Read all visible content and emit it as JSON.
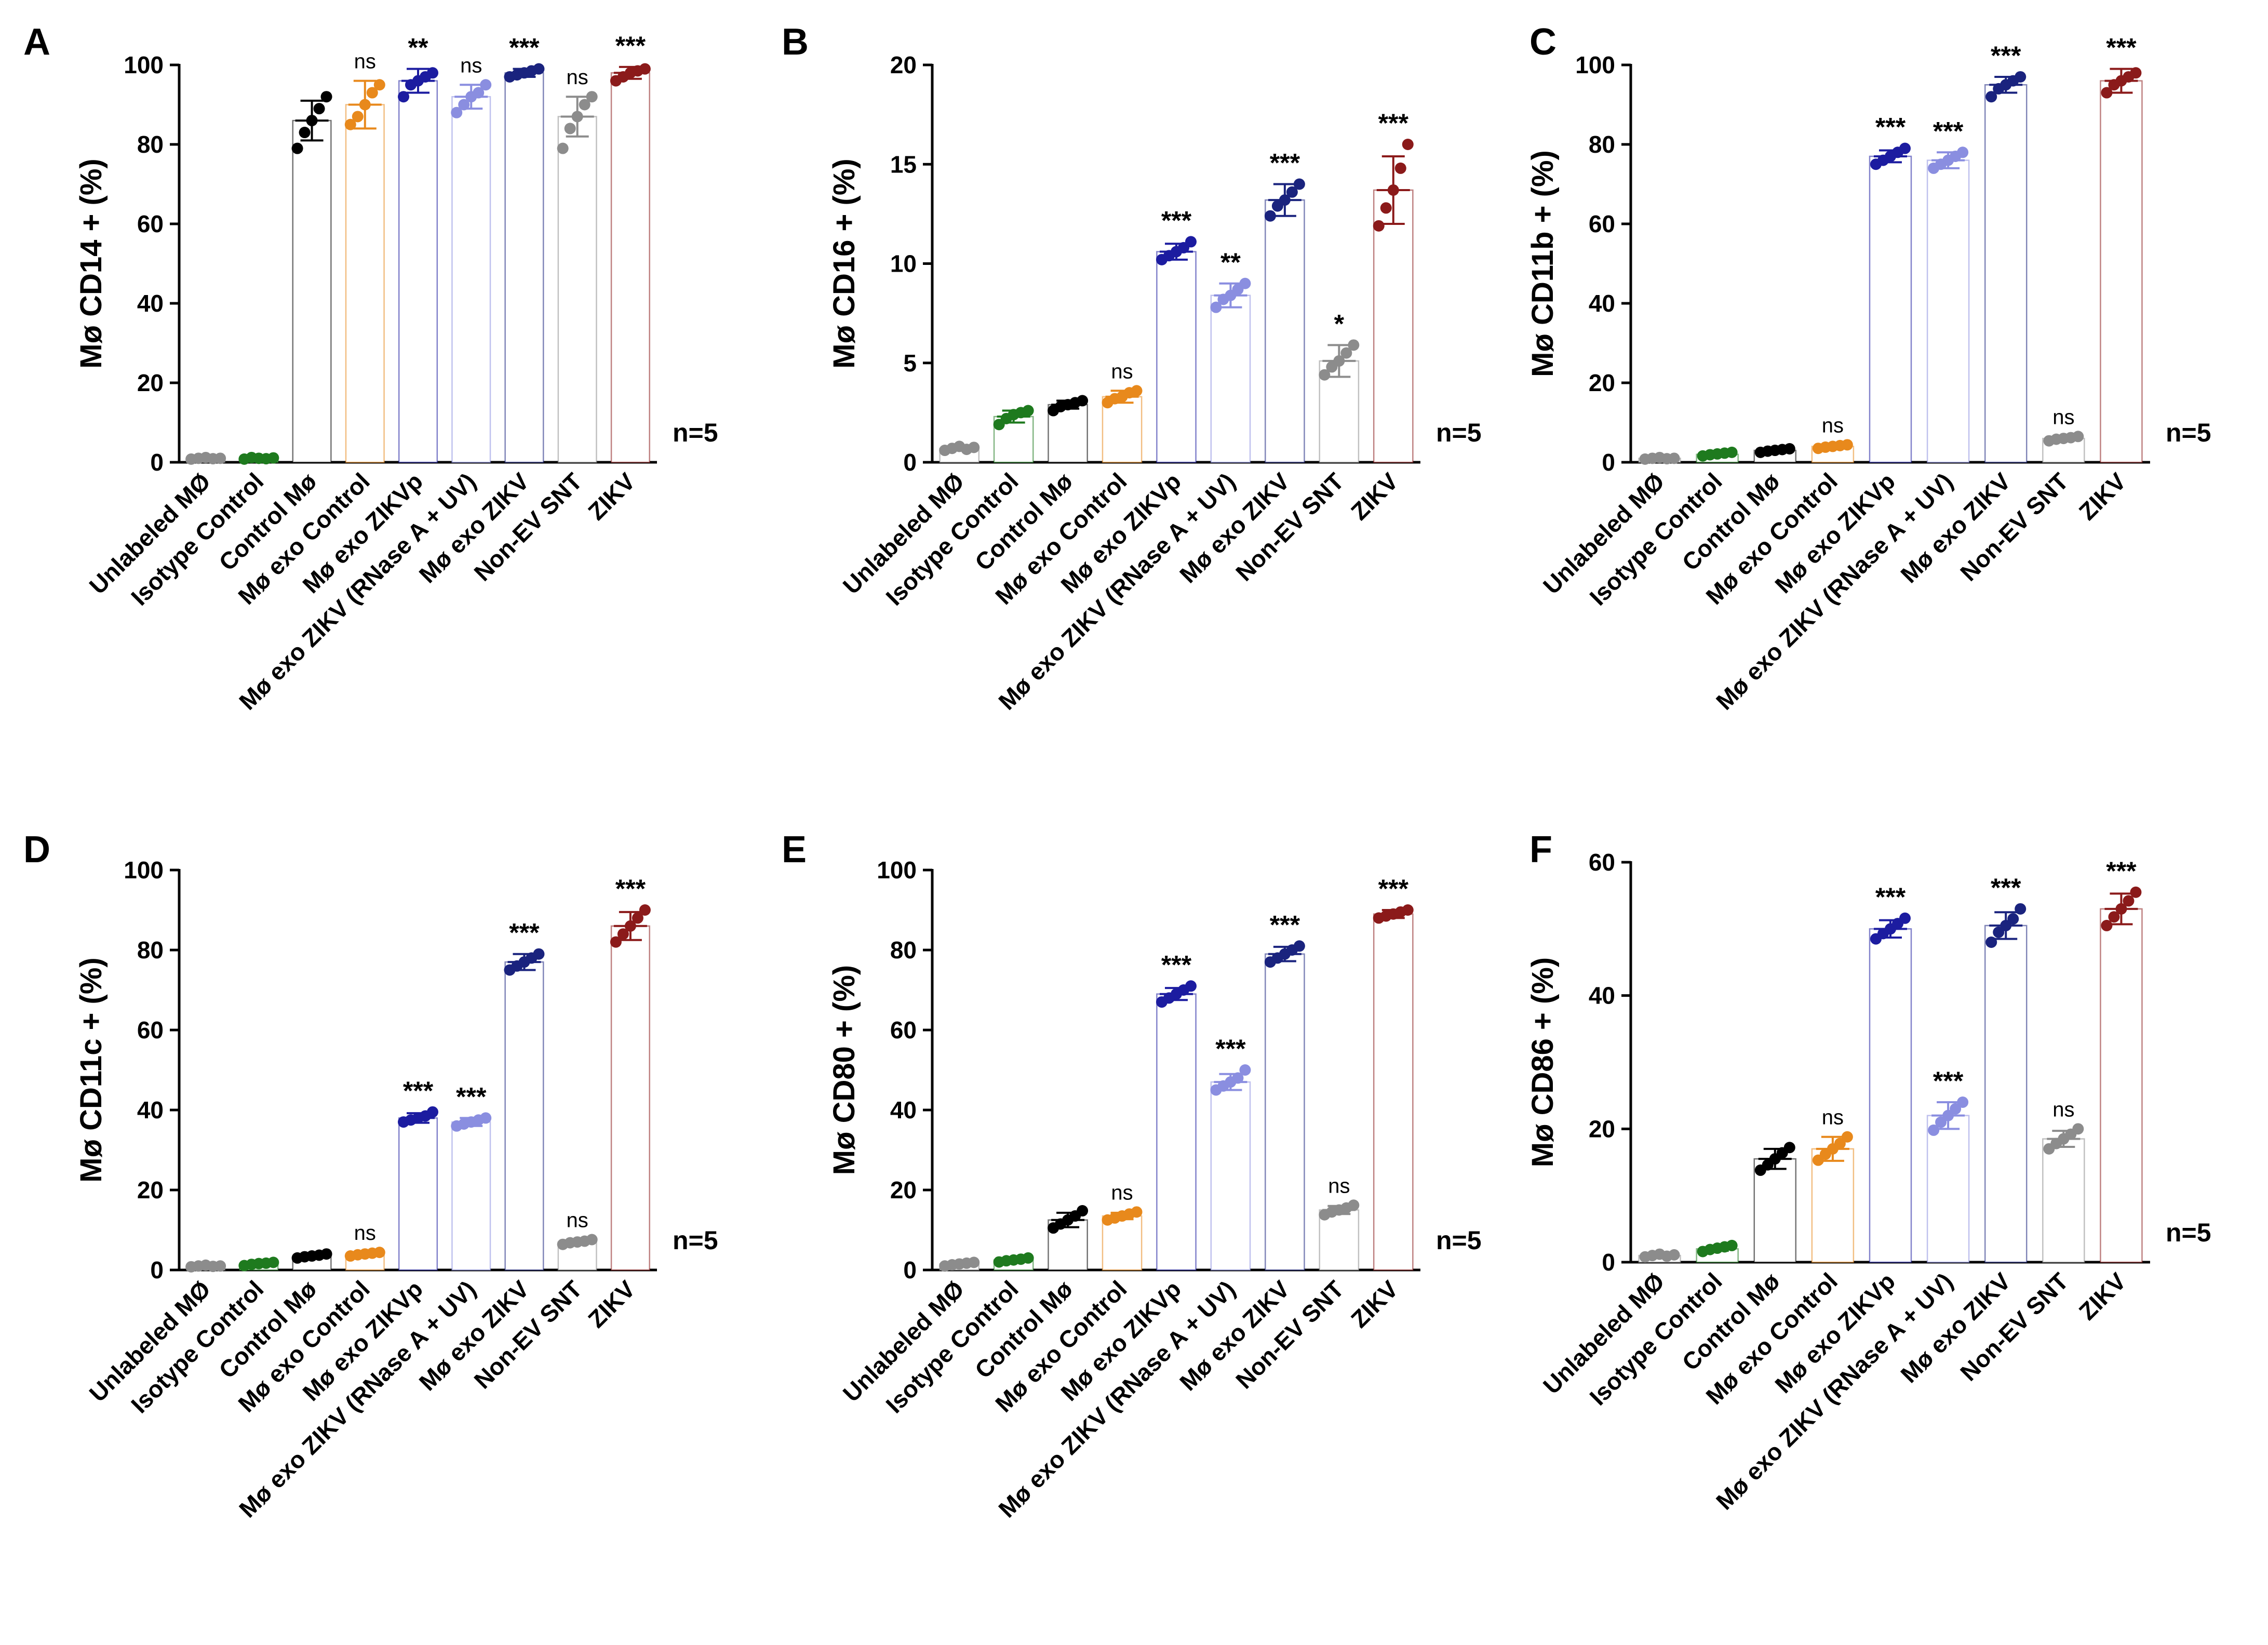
{
  "n_label": "n=5",
  "categories": [
    "Unlabeled MØ",
    "Isotype Control",
    "Control Mø",
    "Mø exo Control",
    "Mø exo ZIKVp",
    "Mø exo ZIKV (RNase A + UV)",
    "Mø exo ZIKV",
    "Non-EV SNT",
    "ZIKV"
  ],
  "colors": [
    "#8c8c8c",
    "#1e7a1e",
    "#000000",
    "#e8891c",
    "#1c1ca0",
    "#8a8ee0",
    "#1a237e",
    "#8c8c8c",
    "#8b1a1a"
  ],
  "chart_data": [
    {
      "type": "bar",
      "panel": "A",
      "ylabel": "Mø CD14 + (%)",
      "ylim": [
        0,
        100
      ],
      "yticks": [
        0,
        20,
        40,
        60,
        80,
        100
      ],
      "values": [
        1,
        1,
        86,
        90,
        96,
        92,
        98,
        87,
        98
      ],
      "points": [
        [
          0.8,
          1,
          1.2,
          0.9,
          1
        ],
        [
          0.8,
          1.2,
          1,
          0.9,
          1.1
        ],
        [
          79,
          83,
          86,
          89,
          92
        ],
        [
          85,
          87,
          90,
          93,
          95
        ],
        [
          92,
          95,
          96,
          97,
          98
        ],
        [
          88,
          90,
          92,
          93,
          95
        ],
        [
          97,
          97.5,
          98,
          98.5,
          99
        ],
        [
          79,
          84,
          87,
          90,
          92
        ],
        [
          96,
          97,
          98,
          98.5,
          99
        ]
      ],
      "sd": [
        0.2,
        0.2,
        5,
        6,
        3,
        3,
        1,
        5,
        1.5
      ],
      "significance": [
        "",
        "",
        "",
        "ns",
        "**",
        "ns",
        "***",
        "ns",
        "***"
      ]
    },
    {
      "type": "bar",
      "panel": "B",
      "ylabel": "Mø CD16 + (%)",
      "ylim": [
        0,
        20
      ],
      "yticks": [
        0,
        5,
        10,
        15,
        20
      ],
      "values": [
        0.7,
        2.3,
        2.9,
        3.3,
        10.6,
        8.4,
        13.2,
        5.1,
        13.7
      ],
      "points": [
        [
          0.6,
          0.7,
          0.8,
          0.65,
          0.75
        ],
        [
          1.9,
          2.2,
          2.4,
          2.5,
          2.6
        ],
        [
          2.6,
          2.8,
          2.9,
          3.0,
          3.1
        ],
        [
          3.0,
          3.2,
          3.3,
          3.5,
          3.6
        ],
        [
          10.2,
          10.4,
          10.6,
          10.8,
          11.1
        ],
        [
          7.8,
          8.2,
          8.4,
          8.7,
          9.0
        ],
        [
          12.4,
          12.9,
          13.2,
          13.6,
          14.0
        ],
        [
          4.4,
          4.8,
          5.1,
          5.5,
          5.9
        ],
        [
          11.9,
          12.8,
          13.7,
          14.8,
          16.0
        ]
      ],
      "sd": [
        0.1,
        0.3,
        0.2,
        0.3,
        0.4,
        0.6,
        0.8,
        0.8,
        1.7
      ],
      "significance": [
        "",
        "",
        "",
        "ns",
        "***",
        "**",
        "***",
        "*",
        "***"
      ]
    },
    {
      "type": "bar",
      "panel": "C",
      "ylabel": "Mø CD11b + (%)",
      "ylim": [
        0,
        100
      ],
      "yticks": [
        0,
        20,
        40,
        60,
        80,
        100
      ],
      "values": [
        1,
        2,
        3,
        4,
        77,
        76,
        95,
        6,
        96
      ],
      "points": [
        [
          0.8,
          1,
          1.2,
          0.9,
          1
        ],
        [
          1.6,
          1.9,
          2.1,
          2.3,
          2.5
        ],
        [
          2.5,
          2.8,
          3,
          3.2,
          3.4
        ],
        [
          3.5,
          3.8,
          4,
          4.2,
          4.4
        ],
        [
          75,
          76,
          77,
          78,
          79
        ],
        [
          74,
          75,
          76,
          77,
          78
        ],
        [
          92,
          94,
          95,
          96,
          97
        ],
        [
          5.4,
          5.8,
          6,
          6.2,
          6.5
        ],
        [
          93,
          95,
          96,
          97,
          98
        ]
      ],
      "sd": [
        0.2,
        0.3,
        0.3,
        0.3,
        1.5,
        2,
        2,
        0.4,
        3
      ],
      "significance": [
        "",
        "",
        "",
        "ns",
        "***",
        "***",
        "***",
        "ns",
        "***"
      ]
    },
    {
      "type": "bar",
      "panel": "D",
      "ylabel": "Mø CD11c + (%)",
      "ylim": [
        0,
        100
      ],
      "yticks": [
        0,
        20,
        40,
        60,
        80,
        100
      ],
      "values": [
        1,
        1.5,
        3.5,
        4,
        38,
        37,
        77,
        7,
        86
      ],
      "points": [
        [
          0.8,
          1,
          1.2,
          0.9,
          1
        ],
        [
          1.1,
          1.4,
          1.6,
          1.7,
          1.9
        ],
        [
          3,
          3.3,
          3.5,
          3.7,
          4
        ],
        [
          3.5,
          3.8,
          4,
          4.2,
          4.4
        ],
        [
          37,
          37.5,
          38,
          38.5,
          39.5
        ],
        [
          36,
          36.5,
          37,
          37.5,
          38
        ],
        [
          75,
          76,
          77,
          78,
          79
        ],
        [
          6.4,
          6.8,
          7,
          7.2,
          7.6
        ],
        [
          82,
          84,
          86,
          88,
          90
        ]
      ],
      "sd": [
        0.2,
        0.3,
        0.3,
        0.3,
        1.2,
        1,
        2,
        0.5,
        3.5
      ],
      "significance": [
        "",
        "",
        "",
        "ns",
        "***",
        "***",
        "***",
        "ns",
        "***"
      ]
    },
    {
      "type": "bar",
      "panel": "E",
      "ylabel": "Mø CD80 + (%)",
      "ylim": [
        0,
        100
      ],
      "yticks": [
        0,
        20,
        40,
        60,
        80,
        100
      ],
      "values": [
        1.5,
        2.5,
        12.5,
        13.5,
        69,
        47,
        79,
        15,
        89
      ],
      "points": [
        [
          1,
          1.3,
          1.5,
          1.7,
          1.9
        ],
        [
          2,
          2.3,
          2.5,
          2.7,
          3
        ],
        [
          10.5,
          11.5,
          12.5,
          13.5,
          14.8
        ],
        [
          12.5,
          13,
          13.5,
          14,
          14.5
        ],
        [
          67,
          68,
          69,
          70,
          71
        ],
        [
          45,
          46,
          47,
          48,
          50
        ],
        [
          77,
          78,
          79,
          80,
          81
        ],
        [
          13.8,
          14.5,
          15,
          15.5,
          16.2
        ],
        [
          88,
          88.5,
          89,
          89.5,
          90
        ]
      ],
      "sd": [
        0.3,
        0.4,
        1.8,
        0.8,
        1.5,
        2,
        1.8,
        1,
        1
      ],
      "significance": [
        "",
        "",
        "",
        "ns",
        "***",
        "***",
        "***",
        "ns",
        "***"
      ]
    },
    {
      "type": "bar",
      "panel": "F",
      "ylabel": "Mø CD86 + (%)",
      "ylim": [
        0,
        60
      ],
      "yticks": [
        0,
        20,
        40,
        60
      ],
      "values": [
        1,
        2,
        15.5,
        17,
        50,
        22,
        50.5,
        18.5,
        53
      ],
      "points": [
        [
          0.8,
          1,
          1.2,
          0.9,
          1.1
        ],
        [
          1.6,
          1.9,
          2.1,
          2.3,
          2.5
        ],
        [
          13.8,
          14.6,
          15.5,
          16.4,
          17.2
        ],
        [
          15.3,
          16.2,
          17,
          17.8,
          18.8
        ],
        [
          48.5,
          49.3,
          50,
          50.8,
          51.6
        ],
        [
          19.8,
          21,
          22,
          23,
          24
        ],
        [
          48,
          49.5,
          50.5,
          51.5,
          53
        ],
        [
          17,
          17.8,
          18.5,
          19.2,
          20
        ],
        [
          50.5,
          51.8,
          53,
          54.2,
          55.5
        ]
      ],
      "sd": [
        0.2,
        0.3,
        1.5,
        1.8,
        1.3,
        2,
        2,
        1.2,
        2.3
      ],
      "significance": [
        "",
        "",
        "",
        "ns",
        "***",
        "***",
        "***",
        "ns",
        "***"
      ]
    }
  ]
}
